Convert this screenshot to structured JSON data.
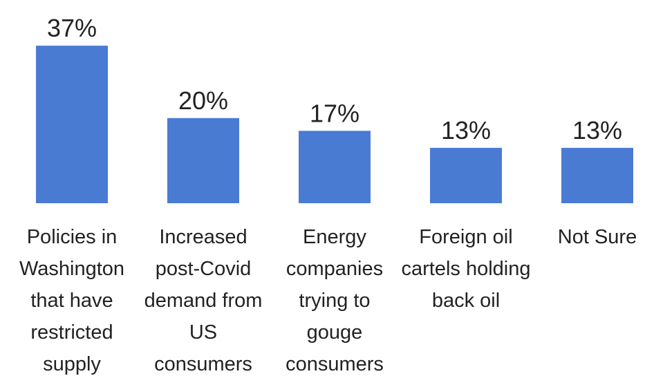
{
  "chart_data": {
    "type": "bar",
    "categories": [
      "Policies in Washington that have restricted supply",
      "Increased post-Covid demand from US consumers",
      "Energy companies trying to gouge consumers",
      "Foreign oil cartels holding back oil",
      "Not Sure"
    ],
    "values": [
      37,
      20,
      17,
      13,
      13
    ],
    "value_labels": [
      "37%",
      "20%",
      "17%",
      "13%",
      "13%"
    ],
    "color": "#4a7bd3"
  }
}
